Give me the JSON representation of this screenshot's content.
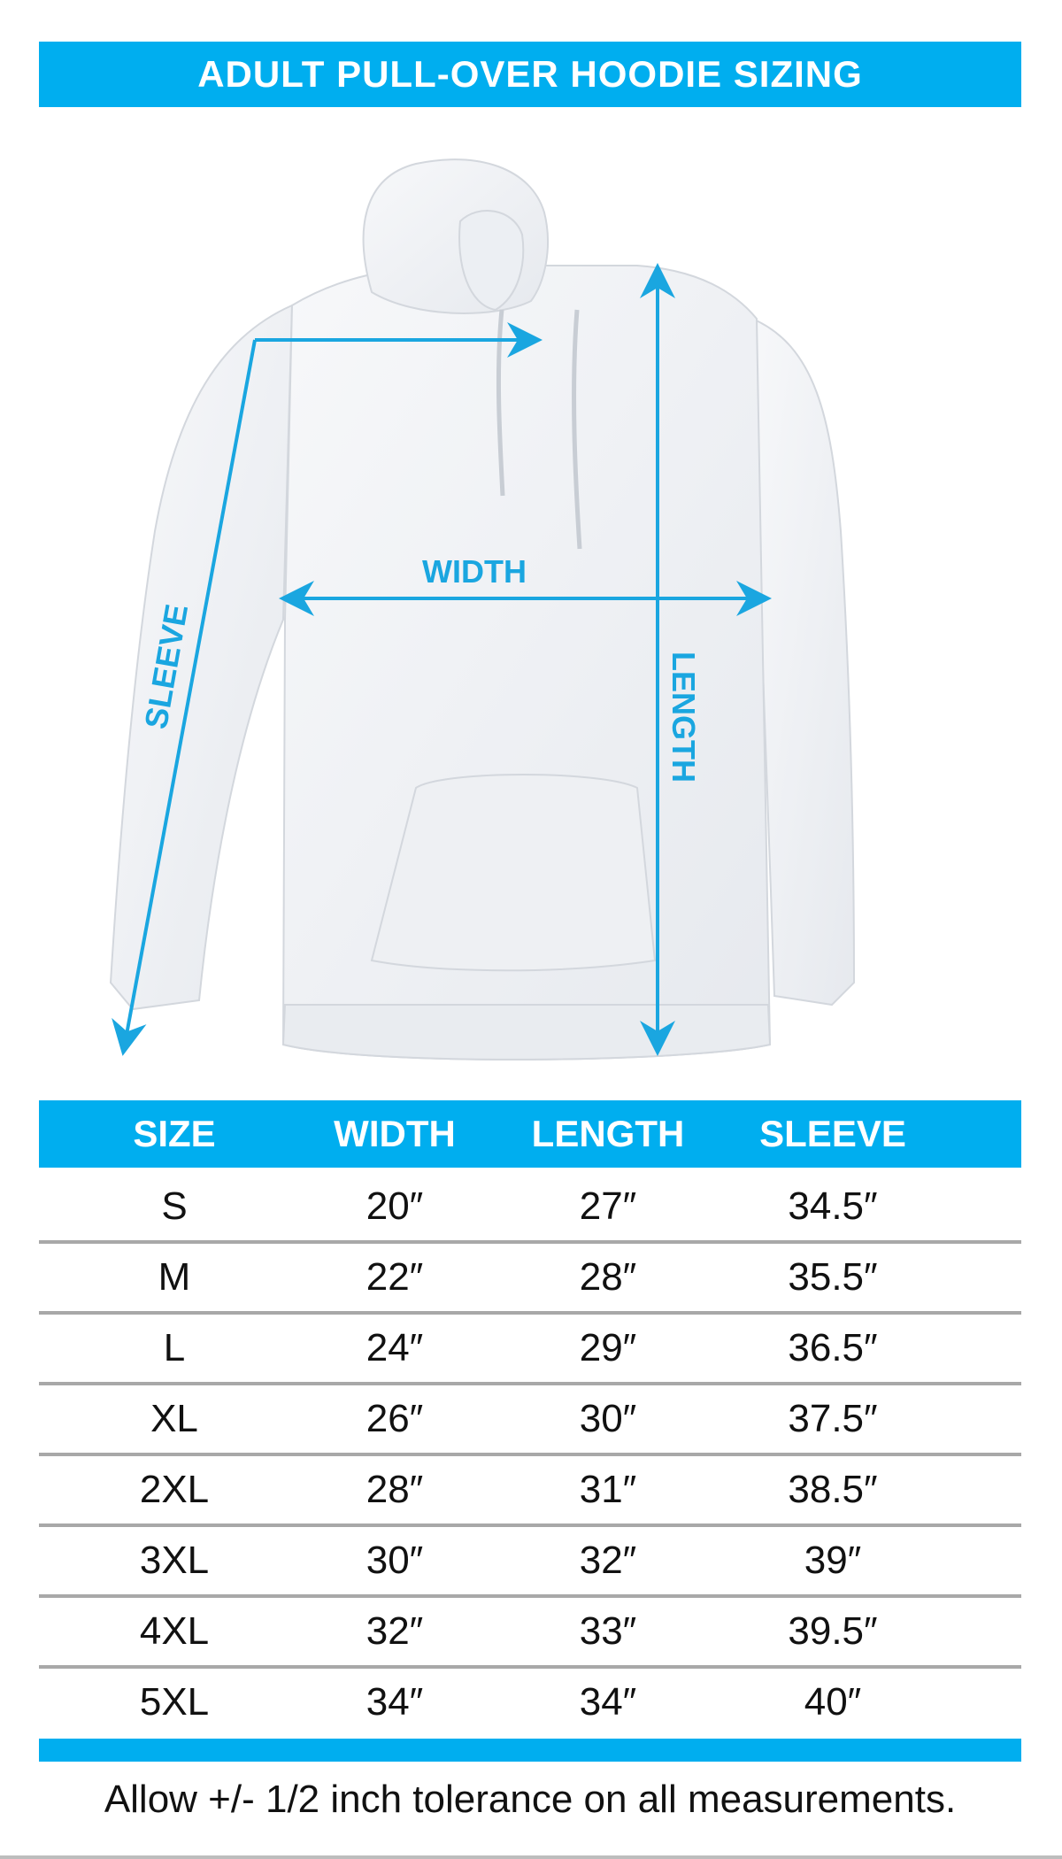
{
  "title": "ADULT PULL-OVER HOODIE SIZING",
  "diagram": {
    "labels": {
      "width": "WIDTH",
      "length": "LENGTH",
      "sleeve": "SLEEVE"
    }
  },
  "table": {
    "headers": [
      "SIZE",
      "WIDTH",
      "LENGTH",
      "SLEEVE"
    ],
    "rows": [
      [
        "S",
        "20″",
        "27″",
        "34.5″"
      ],
      [
        "M",
        "22″",
        "28″",
        "35.5″"
      ],
      [
        "L",
        "24″",
        "29″",
        "36.5″"
      ],
      [
        "XL",
        "26″",
        "30″",
        "37.5″"
      ],
      [
        "2XL",
        "28″",
        "31″",
        "38.5″"
      ],
      [
        "3XL",
        "30″",
        "32″",
        "39″"
      ],
      [
        "4XL",
        "32″",
        "33″",
        "39.5″"
      ],
      [
        "5XL",
        "34″",
        "34″",
        "40″"
      ]
    ]
  },
  "footer_note": "Allow +/- 1/2 inch tolerance on all measurements.",
  "colors": {
    "accent": "#00aeef",
    "arrow": "#1aa6e0",
    "divider": "#a8a8a8"
  }
}
